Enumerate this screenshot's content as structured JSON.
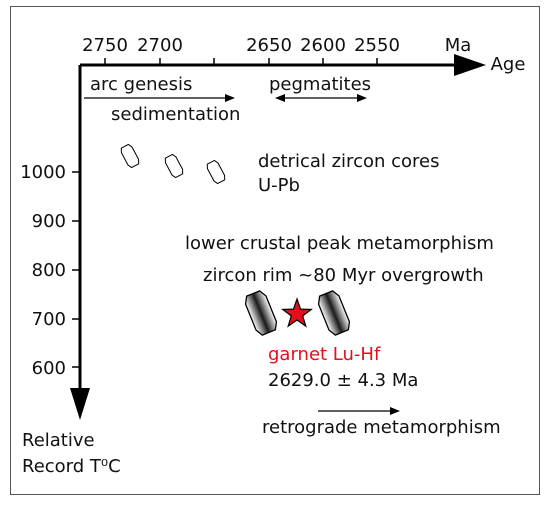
{
  "axes": {
    "time_unit": "Ma",
    "time_label": "Age",
    "time_ticks": [
      "2750",
      "2700",
      "2650",
      "2600",
      "2550"
    ],
    "temp_ticks": [
      "1000",
      "900",
      "800",
      "700",
      "600"
    ],
    "temp_label_line1": "Relative",
    "temp_label_line2": "Record T⁰C"
  },
  "events": {
    "arc_genesis": "arc genesis",
    "sedimentation": "sedimentation",
    "pegmatites": "pegmatites",
    "detrital_line1": "detrical zircon cores",
    "detrital_line2": "U-Pb",
    "peak_metamorphism": "lower crustal peak metamorphism",
    "zircon_rim": "zircon rim ~80 Myr overgrowth",
    "garnet": "garnet Lu-Hf",
    "garnet_age": "2629.0 ± 4.3 Ma",
    "retrograde": "retrograde metamorphism"
  },
  "colors": {
    "axis": "#000000",
    "garnet_text": "#e3101a",
    "star_fill": "#e3101a"
  }
}
